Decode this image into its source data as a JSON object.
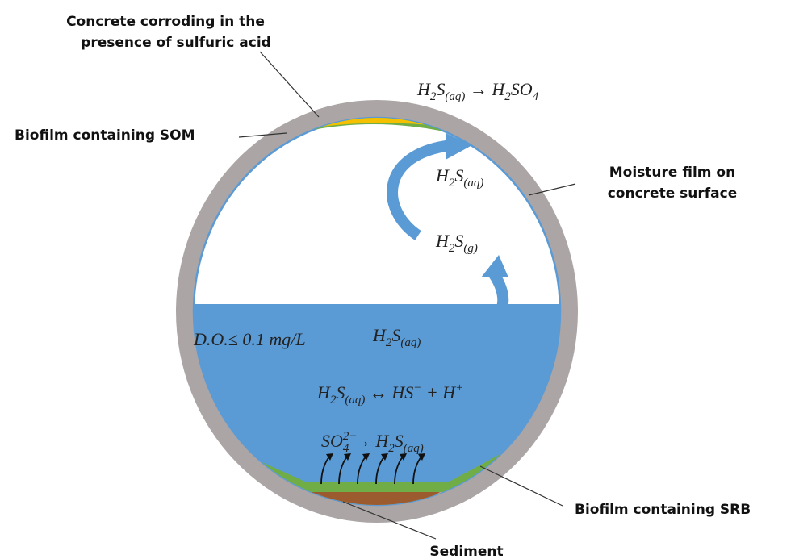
{
  "labels": {
    "concrete_corroding": [
      "Concrete corroding in the",
      "presence of sulfuric acid"
    ],
    "biofilm_som": "Biofilm containing SOM",
    "moisture_film": [
      "Moisture film on",
      "concrete surface"
    ],
    "biofilm_srb": "Biofilm containing SRB",
    "sediment": "Sediment"
  },
  "equations": {
    "oxidation": [
      {
        "text": "H"
      },
      {
        "sub": "2"
      },
      {
        "text": "S"
      },
      {
        "sub": "(aq)"
      },
      {
        "text": " → H"
      },
      {
        "sub": "2"
      },
      {
        "text": "SO"
      },
      {
        "sub": "4"
      }
    ],
    "h2s_aq_film": [
      {
        "text": "H"
      },
      {
        "sub": "2"
      },
      {
        "text": "S"
      },
      {
        "sub": "(aq)"
      }
    ],
    "h2s_g": [
      {
        "text": "H"
      },
      {
        "sub": "2"
      },
      {
        "text": "S"
      },
      {
        "sub": "(g)"
      }
    ],
    "dissolved_oxygen": [
      {
        "text": "D.O.≤ 0.1 mg/L"
      }
    ],
    "h2s_aq_water": [
      {
        "text": "H"
      },
      {
        "sub": "2"
      },
      {
        "text": "S"
      },
      {
        "sub": "(aq)"
      }
    ],
    "dissociation": [
      {
        "text": "H"
      },
      {
        "sub": "2"
      },
      {
        "text": "S"
      },
      {
        "sub": "(aq)"
      },
      {
        "text": " ↔ HS"
      },
      {
        "sup": "−"
      },
      {
        "text": " + H"
      },
      {
        "sup": "+"
      }
    ],
    "sulfate_reduction": [
      {
        "text": "SO"
      },
      {
        "sup": "2−"
      },
      {
        "sub": "4"
      },
      {
        "text": " → H"
      },
      {
        "sub": "2"
      },
      {
        "text": "S"
      },
      {
        "sub": "(aq)"
      }
    ]
  }
}
